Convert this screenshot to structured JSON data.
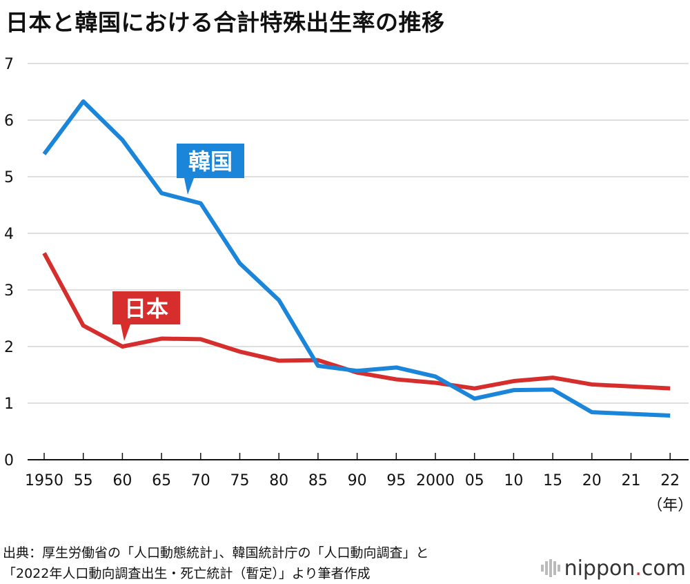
{
  "title": "日本と韓国における合計特殊出生率の推移",
  "source": {
    "line1": "出典：厚生労働省の「人口動態統計」、韓国統計庁の「人口動向調査」と",
    "line2": "「2022年人口動向調査出生・死亡統計（暫定）」より筆者作成"
  },
  "logo": {
    "name": "nippon",
    "dot": ".",
    "suffix": "com",
    "icon": "nippon-bars-icon"
  },
  "colors": {
    "korea": "#1a85d9",
    "japan": "#d62d2d",
    "grid": "#cccccc",
    "axis": "#111111"
  },
  "chart_data": {
    "type": "line",
    "title": "日本と韓国における合計特殊出生率の推移",
    "xlabel": "（年）",
    "ylabel": "",
    "ylim": [
      0,
      7
    ],
    "yticks": [
      "0",
      "1",
      "2",
      "3",
      "4",
      "5",
      "6",
      "7"
    ],
    "grid": true,
    "categories": [
      "1950",
      "55",
      "60",
      "65",
      "70",
      "75",
      "80",
      "85",
      "90",
      "95",
      "2000",
      "05",
      "10",
      "15",
      "20",
      "21",
      "22"
    ],
    "x": [
      1950,
      1955,
      1960,
      1965,
      1970,
      1975,
      1980,
      1985,
      1990,
      1995,
      2000,
      2005,
      2010,
      2015,
      2020,
      2021,
      2022
    ],
    "series": [
      {
        "name": "韓国",
        "color": "#1a85d9",
        "points": [
          [
            1950,
            5.4
          ],
          [
            1955,
            6.33
          ],
          [
            1960,
            5.65
          ],
          [
            1965,
            4.71
          ],
          [
            1970,
            4.53
          ],
          [
            1975,
            3.47
          ],
          [
            1980,
            2.82
          ],
          [
            1985,
            1.66
          ],
          [
            1990,
            1.57
          ],
          [
            1995,
            1.63
          ],
          [
            2000,
            1.47
          ],
          [
            2005,
            1.08
          ],
          [
            2010,
            1.23
          ],
          [
            2015,
            1.24
          ],
          [
            2020,
            0.84
          ],
          [
            2022,
            0.78
          ]
        ]
      },
      {
        "name": "日本",
        "color": "#d62d2d",
        "points": [
          [
            1950,
            3.65
          ],
          [
            1955,
            2.37
          ],
          [
            1960,
            2.0
          ],
          [
            1965,
            2.14
          ],
          [
            1970,
            2.13
          ],
          [
            1975,
            1.91
          ],
          [
            1980,
            1.75
          ],
          [
            1985,
            1.76
          ],
          [
            1990,
            1.54
          ],
          [
            1995,
            1.42
          ],
          [
            2000,
            1.36
          ],
          [
            2005,
            1.26
          ],
          [
            2010,
            1.39
          ],
          [
            2015,
            1.45
          ],
          [
            2020,
            1.33
          ],
          [
            2022,
            1.26
          ]
        ]
      }
    ]
  }
}
